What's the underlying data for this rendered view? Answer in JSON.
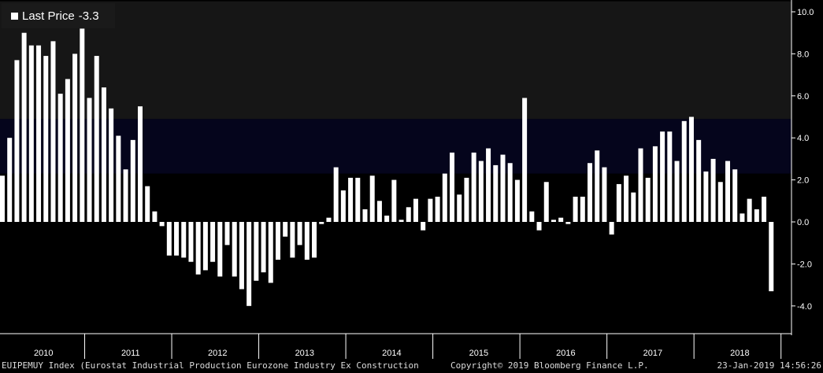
{
  "legend": {
    "label": "Last Price",
    "value": "-3.3"
  },
  "footer": {
    "left": "EUIPEMUY Index (Eurostat Industrial Production Eurozone Industry Ex Construction",
    "center": "Copyright© 2019 Bloomberg Finance L.P.",
    "right": "23-Jan-2019 14:56:26"
  },
  "colors": {
    "background": "#000000",
    "upper_band": "#161616",
    "highlight_band": "#05051c",
    "bar": "#ffffff",
    "text": "#ffffff"
  },
  "chart_data": {
    "type": "bar",
    "title": "",
    "xlabel": "",
    "ylabel": "",
    "ylim": [
      -5,
      10.5
    ],
    "yticks": [
      "10.0",
      "8.0",
      "6.0",
      "4.0",
      "2.0",
      "0.0",
      "-2.0",
      "-4.0"
    ],
    "ytick_values": [
      10,
      8,
      6,
      4,
      2,
      0,
      -2,
      -4
    ],
    "y_axis_side": "right",
    "x_labels": [
      "2010",
      "2011",
      "2012",
      "2013",
      "2014",
      "2015",
      "2016",
      "2017",
      "2018"
    ],
    "bands": [
      {
        "from": 2.3,
        "to": 4.9,
        "color": "#05051c"
      },
      {
        "from": 4.9,
        "to": 10.5,
        "color": "#161616"
      }
    ],
    "series": [
      {
        "values": [
          2.2,
          4.0,
          7.7,
          9.0,
          8.4,
          8.4,
          7.9,
          8.6,
          6.1,
          6.8,
          8.0,
          9.2,
          5.9,
          7.9,
          6.4,
          5.4,
          4.1,
          2.5,
          3.9,
          5.5,
          1.7,
          0.5,
          -0.2,
          -1.6,
          -1.6,
          -1.7,
          -1.9,
          -2.5,
          -2.3,
          -1.9,
          -2.6,
          -1.1,
          -2.6,
          -3.2,
          -4.0,
          -2.8,
          -2.4,
          -2.9,
          -1.8,
          -0.7,
          -1.7,
          -1.1,
          -1.8,
          -1.7,
          -0.1,
          0.2,
          2.6,
          1.5,
          2.1,
          2.1,
          0.6,
          2.2,
          1.0,
          0.3,
          2.0,
          0.1,
          0.7,
          1.1,
          -0.4,
          1.1,
          1.2,
          2.3,
          3.3,
          1.3,
          2.1,
          3.3,
          2.9,
          3.5,
          2.7,
          3.2,
          2.8,
          2.0,
          5.9,
          0.5,
          -0.4,
          1.9,
          0.1,
          0.2,
          -0.1,
          1.2,
          1.2,
          2.8,
          3.4,
          2.6,
          -0.6,
          1.8,
          2.2,
          1.4,
          3.5,
          2.1,
          3.6,
          4.3,
          4.3,
          2.9,
          4.8,
          5.0,
          3.9,
          2.4,
          3.0,
          1.9,
          2.9,
          2.5,
          0.4,
          1.1,
          0.6,
          1.2,
          -3.3
        ]
      }
    ]
  }
}
